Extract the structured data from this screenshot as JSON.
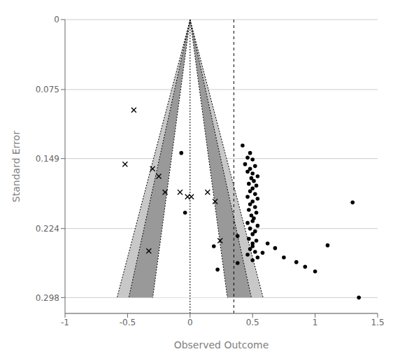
{
  "chart_data": {
    "type": "scatter",
    "xlabel": "Observed Outcome",
    "ylabel": "Standard Error",
    "xlim": [
      -1,
      1.5
    ],
    "xticks": [
      -1,
      -0.5,
      0,
      0.5,
      1,
      1.5
    ],
    "ylim": [
      0.315,
      0
    ],
    "yticks": [
      0,
      0.075,
      0.149,
      0.224,
      0.298
    ],
    "grid": true,
    "series": [
      {
        "type": "area",
        "color": "#c8c8c8",
        "x": [
          0,
          -0.58408,
          -0.49021
        ],
        "values": [
          0,
          0.298,
          0.298
        ]
      },
      {
        "type": "area",
        "color": "#c8c8c8",
        "x": [
          0,
          0.49021,
          0.58408
        ],
        "values": [
          0,
          0.298,
          0.298
        ]
      },
      {
        "type": "area",
        "color": "#999999",
        "x": [
          0,
          -0.49021,
          -0.298
        ],
        "values": [
          0,
          0.298,
          0.298
        ]
      },
      {
        "type": "area",
        "color": "#999999",
        "x": [
          0,
          0.298,
          0.49021
        ],
        "values": [
          0,
          0.298,
          0.298
        ]
      },
      {
        "type": "area",
        "color": "#ffffff",
        "x": [
          0,
          -0.298,
          0.298
        ],
        "values": [
          0,
          0.298,
          0.298
        ]
      },
      {
        "type": "line",
        "line_style": "dotted",
        "color": "#000000",
        "x": [
          0,
          -0.58408
        ],
        "values": [
          0,
          0.298
        ]
      },
      {
        "type": "line",
        "line_style": "dotted",
        "color": "#000000",
        "x": [
          0,
          0.58408
        ],
        "values": [
          0,
          0.298
        ]
      },
      {
        "type": "line",
        "line_style": "dotted",
        "color": "#000000",
        "x": [
          0,
          -0.49021
        ],
        "values": [
          0,
          0.298
        ]
      },
      {
        "type": "line",
        "line_style": "dotted",
        "color": "#000000",
        "x": [
          0,
          0.49021
        ],
        "values": [
          0,
          0.298
        ]
      },
      {
        "type": "line",
        "line_style": "dotted",
        "color": "#000000",
        "x": [
          0,
          -0.298
        ],
        "values": [
          0,
          0.298
        ]
      },
      {
        "type": "line",
        "line_style": "dotted",
        "color": "#000000",
        "x": [
          0,
          0.298
        ],
        "values": [
          0,
          0.298
        ]
      },
      {
        "type": "vline",
        "line_style": "dotted",
        "color": "#000000",
        "x": 0
      },
      {
        "type": "vline",
        "line_style": "dashed",
        "color": "#000000",
        "x": 0.35
      },
      {
        "type": "scatter",
        "marker": "circle",
        "color": "#000000",
        "x": [
          0.42,
          0.48,
          0.46,
          0.5,
          0.44,
          0.52,
          0.48,
          0.46,
          0.5,
          0.54,
          0.49,
          0.51,
          0.47,
          0.53,
          0.5,
          0.48,
          0.52,
          0.46,
          0.54,
          0.5,
          0.48,
          0.52,
          0.47,
          0.53,
          0.49,
          0.51,
          0.5,
          0.46,
          0.54,
          0.48,
          0.52,
          0.5,
          0.38,
          0.47,
          0.53,
          0.5,
          0.5,
          0.48,
          0.52,
          0.46,
          0.54,
          0.5,
          0.38,
          0.75,
          0.85,
          0.62,
          0.68,
          0.58,
          1.1,
          1.3,
          -0.07,
          -0.04,
          0.19,
          0.22,
          1.35,
          0.92,
          1.0
        ],
        "values": [
          0.135,
          0.143,
          0.148,
          0.15,
          0.155,
          0.157,
          0.16,
          0.163,
          0.165,
          0.168,
          0.17,
          0.173,
          0.176,
          0.178,
          0.181,
          0.184,
          0.187,
          0.19,
          0.192,
          0.195,
          0.198,
          0.201,
          0.204,
          0.207,
          0.21,
          0.213,
          0.216,
          0.218,
          0.221,
          0.224,
          0.227,
          0.23,
          0.232,
          0.235,
          0.237,
          0.24,
          0.243,
          0.246,
          0.249,
          0.252,
          0.255,
          0.258,
          0.261,
          0.255,
          0.26,
          0.24,
          0.245,
          0.25,
          0.242,
          0.196,
          0.143,
          0.207,
          0.243,
          0.268,
          0.298,
          0.265,
          0.27
        ]
      },
      {
        "type": "scatter",
        "marker": "x",
        "color": "#000000",
        "x": [
          -0.45,
          -0.52,
          -0.3,
          -0.25,
          -0.2,
          -0.08,
          0.14,
          -0.02,
          0.01,
          0.2,
          -0.33,
          0.24
        ],
        "values": [
          0.097,
          0.155,
          0.16,
          0.168,
          0.185,
          0.185,
          0.185,
          0.19,
          0.19,
          0.195,
          0.248,
          0.237
        ]
      }
    ]
  }
}
